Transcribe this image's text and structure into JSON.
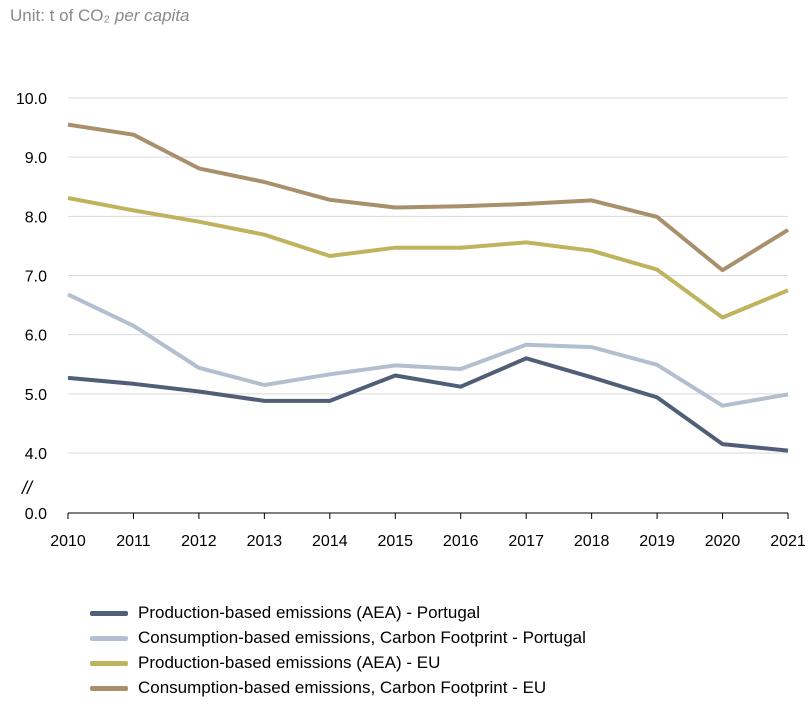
{
  "unit": {
    "prefix": "Unit: t of CO₂ ",
    "italic": "per capita"
  },
  "break_mark": "//",
  "chart_data": {
    "type": "line",
    "x": [
      "2010",
      "2011",
      "2012",
      "2013",
      "2014",
      "2015",
      "2016",
      "2017",
      "2018",
      "2019",
      "2020",
      "2021"
    ],
    "y_ticks": [
      "10.0",
      "9.0",
      "8.0",
      "7.0",
      "6.0",
      "5.0",
      "4.0",
      "0.0"
    ],
    "ylim": [
      0,
      10
    ],
    "axis_break": "between 0.0 and 4.0",
    "grid": "horizontal",
    "legend_position": "bottom",
    "series": [
      {
        "name": "Production-based emissions (AEA) - Portugal",
        "color": "#4f5f77",
        "values": [
          5.27,
          5.17,
          5.04,
          4.88,
          4.88,
          5.31,
          5.12,
          5.6,
          5.28,
          4.94,
          4.15,
          4.04
        ]
      },
      {
        "name": "Consumption-based emissions, Carbon Footprint - Portugal",
        "color": "#b3bfcf",
        "values": [
          6.68,
          6.15,
          5.44,
          5.15,
          5.33,
          5.48,
          5.42,
          5.83,
          5.79,
          5.49,
          4.8,
          4.99
        ]
      },
      {
        "name": "Production-based emissions (AEA) - EU",
        "color": "#bfb35e",
        "values": [
          8.31,
          8.1,
          7.91,
          7.69,
          7.33,
          7.47,
          7.47,
          7.56,
          7.42,
          7.1,
          6.29,
          6.75
        ]
      },
      {
        "name": "Consumption-based emissions, Carbon Footprint - EU",
        "color": "#a8906c",
        "values": [
          9.55,
          9.38,
          8.81,
          8.58,
          8.28,
          8.15,
          8.17,
          8.21,
          8.27,
          7.99,
          7.09,
          7.77
        ]
      }
    ]
  }
}
